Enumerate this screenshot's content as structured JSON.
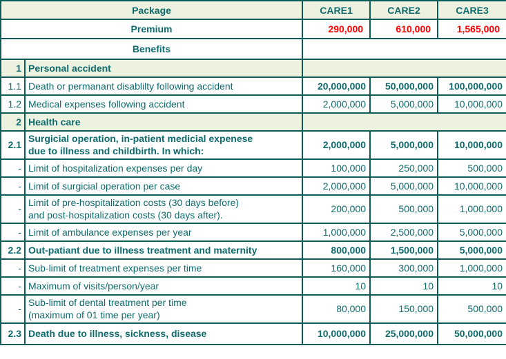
{
  "colors": {
    "text_teal": "#0e6b6d",
    "border_teal": "#0b5c59",
    "section_green": "#edf1e0",
    "premium_red": "#ff0000",
    "cell_white": "#ffffff"
  },
  "header": {
    "package_label": "Package",
    "care_columns": [
      "CARE1",
      "CARE2",
      "CARE3"
    ]
  },
  "premium": {
    "label": "Premium",
    "values": [
      "290,000",
      "610,000",
      "1,565,000"
    ]
  },
  "benefits_section_label": "Benefits",
  "rows": [
    {
      "no": "1",
      "desc": "Personal accident",
      "type": "section"
    },
    {
      "no": "1.1",
      "desc": "Death or permanant disablilty following accident",
      "values": [
        "20,000,000",
        "50,000,000",
        "100,000,000"
      ],
      "style": "values-bold"
    },
    {
      "no": "1.2",
      "desc": "Medical expenses following accident",
      "values": [
        "2,000,000",
        "5,000,000",
        "10,000,000"
      ],
      "style": "normal"
    },
    {
      "no": "2",
      "desc": "Health care",
      "type": "section"
    },
    {
      "no": "2.1",
      "desc": "Surgicial operation, in-patient medicial expenese\ndue to illness and childbirth. In which:",
      "values": [
        "2,000,000",
        "5,000,000",
        "10,000,000"
      ],
      "style": "bold"
    },
    {
      "no": "-",
      "desc": "Limit of hospitalization expenses per day",
      "values": [
        "100,000",
        "250,000",
        "500,000"
      ],
      "style": "normal"
    },
    {
      "no": "-",
      "desc": "Limit of surgicial operation per case",
      "values": [
        "2,000,000",
        "5,000,000",
        "10,000,000"
      ],
      "style": "normal"
    },
    {
      "no": "-",
      "desc": "Limit of pre-hospitalization costs (30 days before)\nand post-hospitalization costs (30 days after).",
      "values": [
        "200,000",
        "500,000",
        "1,000,000"
      ],
      "style": "normal"
    },
    {
      "no": "-",
      "desc": "Limit of ambulance expenses per year",
      "values": [
        "1,000,000",
        "2,500,000",
        "5,000,000"
      ],
      "style": "normal"
    },
    {
      "no": "2.2",
      "desc": "Out-patiant due to illness treatment and maternity",
      "values": [
        "800,000",
        "1,500,000",
        "5,000,000"
      ],
      "style": "bold"
    },
    {
      "no": "-",
      "desc": "Sub-limit of treatment expenses per time",
      "values": [
        "160,000",
        "300,000",
        "1,000,000"
      ],
      "style": "normal"
    },
    {
      "no": "-",
      "desc": "Maximum of visits/person/year",
      "values": [
        "10",
        "10",
        "10"
      ],
      "style": "normal"
    },
    {
      "no": "-",
      "desc": "Sub-limit of dental treatment per time\n(maximum of 01 time per year)",
      "values": [
        "80,000",
        "150,000",
        "500,000"
      ],
      "style": "normal"
    },
    {
      "no": "2.3",
      "desc": "Death due to illness, sickness, disease",
      "values": [
        "10,000,000",
        "25,000,000",
        "50,000,000"
      ],
      "style": "bold"
    }
  ]
}
